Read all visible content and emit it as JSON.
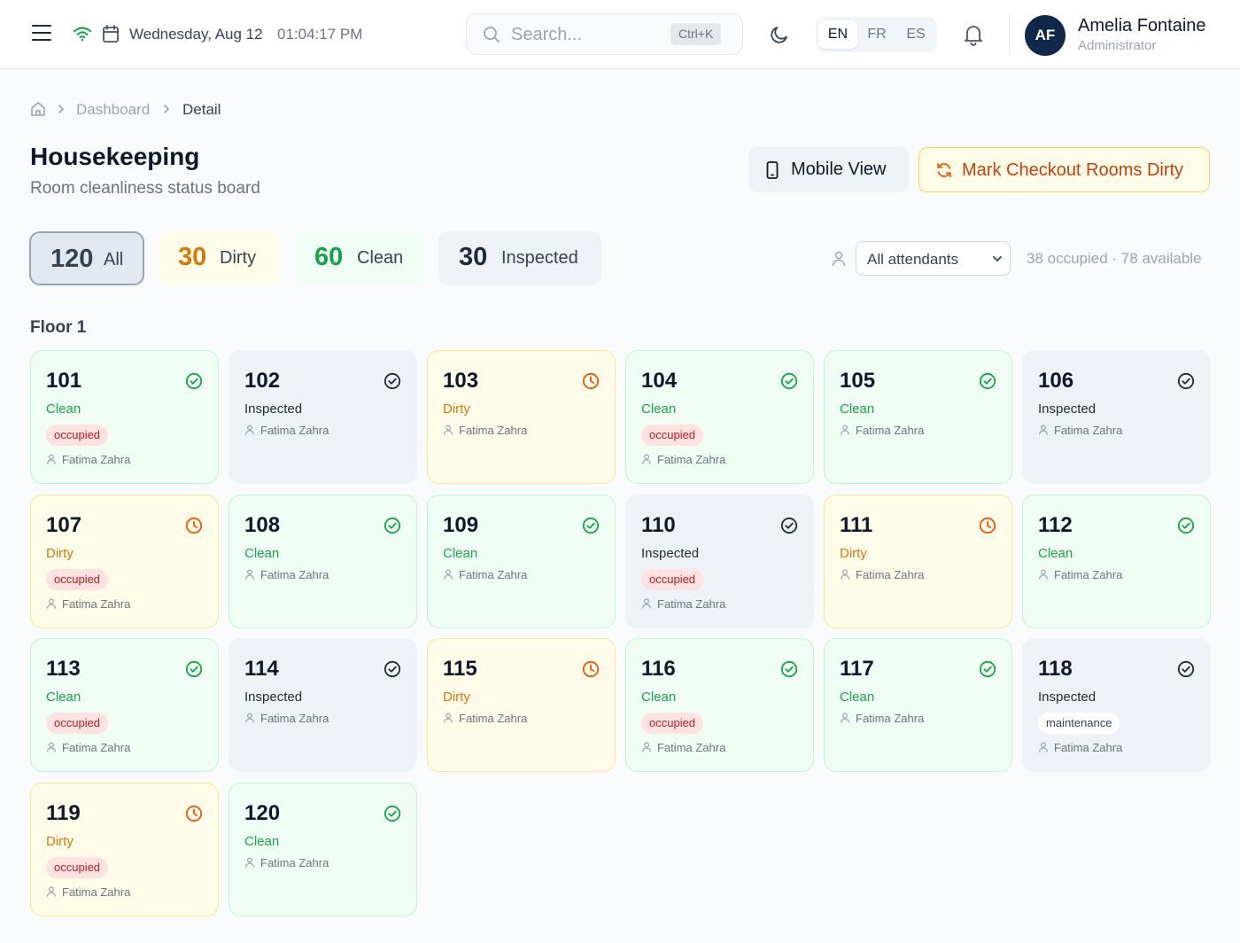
{
  "header": {
    "date": "Wednesday, Aug 12",
    "time": "01:04:17 PM",
    "search_placeholder": "Search...",
    "search_shortcut": "Ctrl+K",
    "languages": [
      "EN",
      "FR",
      "ES"
    ],
    "active_language": "EN",
    "user": {
      "initials": "AF",
      "name": "Amelia Fontaine",
      "role": "Administrator"
    }
  },
  "breadcrumb": {
    "parent": "Dashboard",
    "current": "Detail"
  },
  "page": {
    "title": "Housekeeping",
    "subtitle": "Room cleanliness status board",
    "mobile_view_label": "Mobile View",
    "mark_dirty_label": "Mark Checkout Rooms Dirty"
  },
  "filters": {
    "all": {
      "count": "120",
      "label": "All"
    },
    "dirty": {
      "count": "30",
      "label": "Dirty"
    },
    "clean": {
      "count": "60",
      "label": "Clean"
    },
    "inspected": {
      "count": "30",
      "label": "Inspected"
    },
    "attendant_select": "All attendants",
    "occupancy": "38 occupied · 78 available"
  },
  "colors": {
    "clean": "#16a34a",
    "dirty": "#d97706",
    "inspected": "#1f2937",
    "occupied": "#b91c1c",
    "accent_orange": "#c2410c"
  },
  "floor_label": "Floor 1",
  "rooms": [
    {
      "number": "101",
      "status": "Clean",
      "badge": "occupied",
      "attendant": "Fatima Zahra"
    },
    {
      "number": "102",
      "status": "Inspected",
      "badge": "",
      "attendant": "Fatima Zahra"
    },
    {
      "number": "103",
      "status": "Dirty",
      "badge": "",
      "attendant": "Fatima Zahra"
    },
    {
      "number": "104",
      "status": "Clean",
      "badge": "occupied",
      "attendant": "Fatima Zahra"
    },
    {
      "number": "105",
      "status": "Clean",
      "badge": "",
      "attendant": "Fatima Zahra"
    },
    {
      "number": "106",
      "status": "Inspected",
      "badge": "",
      "attendant": "Fatima Zahra"
    },
    {
      "number": "107",
      "status": "Dirty",
      "badge": "occupied",
      "attendant": "Fatima Zahra"
    },
    {
      "number": "108",
      "status": "Clean",
      "badge": "",
      "attendant": "Fatima Zahra"
    },
    {
      "number": "109",
      "status": "Clean",
      "badge": "",
      "attendant": "Fatima Zahra"
    },
    {
      "number": "110",
      "status": "Inspected",
      "badge": "occupied",
      "attendant": "Fatima Zahra"
    },
    {
      "number": "111",
      "status": "Dirty",
      "badge": "",
      "attendant": "Fatima Zahra"
    },
    {
      "number": "112",
      "status": "Clean",
      "badge": "",
      "attendant": "Fatima Zahra"
    },
    {
      "number": "113",
      "status": "Clean",
      "badge": "occupied",
      "attendant": "Fatima Zahra"
    },
    {
      "number": "114",
      "status": "Inspected",
      "badge": "",
      "attendant": "Fatima Zahra"
    },
    {
      "number": "115",
      "status": "Dirty",
      "badge": "",
      "attendant": "Fatima Zahra"
    },
    {
      "number": "116",
      "status": "Clean",
      "badge": "occupied",
      "attendant": "Fatima Zahra"
    },
    {
      "number": "117",
      "status": "Clean",
      "badge": "",
      "attendant": "Fatima Zahra"
    },
    {
      "number": "118",
      "status": "Inspected",
      "badge": "maintenance",
      "attendant": "Fatima Zahra"
    },
    {
      "number": "119",
      "status": "Dirty",
      "badge": "occupied",
      "attendant": "Fatima Zahra"
    },
    {
      "number": "120",
      "status": "Clean",
      "badge": "",
      "attendant": "Fatima Zahra"
    }
  ]
}
